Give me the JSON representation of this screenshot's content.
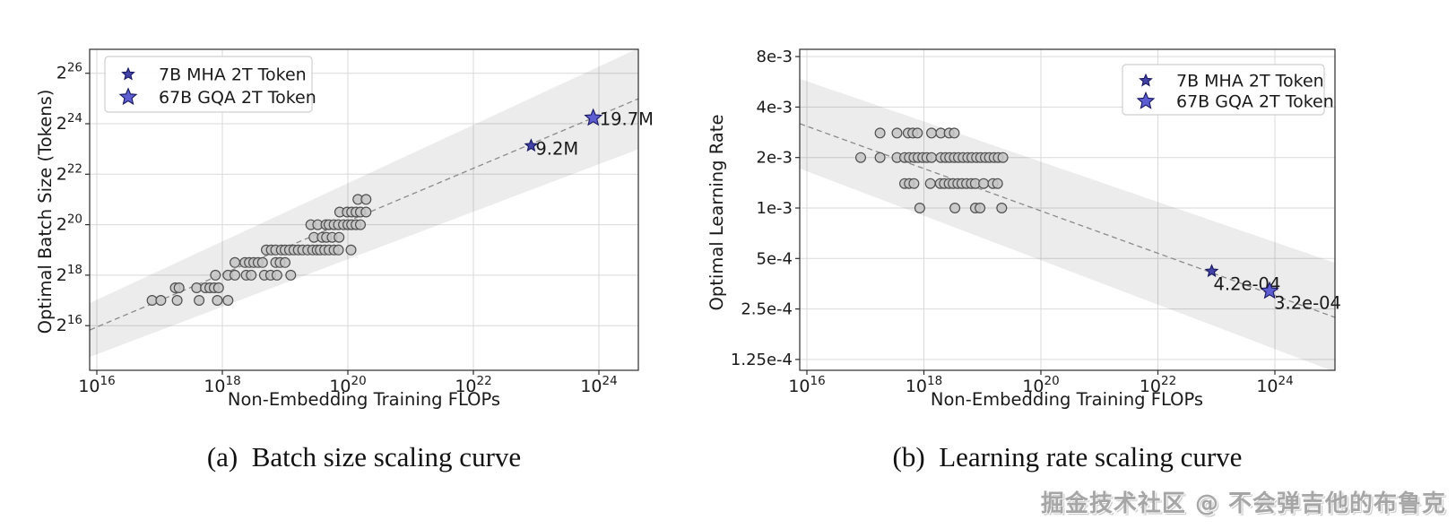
{
  "figure": {
    "caption_a": "(a)  Batch size scaling curve",
    "caption_b": "(b)  Learning rate scaling curve",
    "watermark": "掘金技术社区 @ 不会弹吉他的布鲁克"
  },
  "colors": {
    "dot_fill": "#c6c6c6",
    "dot_edge": "#4f4f4f",
    "star_small_fill": "#4343a7",
    "star_large_fill": "#5e5ed3",
    "star_edge": "#181860",
    "fit_line": "#8a8a8a",
    "band_fill": "rgba(0,0,0,0.075)",
    "grid": "#d9d9d9",
    "spine": "#2b2b2b",
    "text": "#1a1a1a",
    "legend_border": "#cfcfcf"
  },
  "chart_data": [
    {
      "id": "a",
      "type": "scatter",
      "title": "(a) Batch size scaling curve",
      "xlabel": "Non-Embedding Training FLOPs",
      "ylabel": "Optimal Batch Size (Tokens)",
      "x_scale": "log10",
      "y_scale": "log2",
      "x_ticks": [
        16,
        18,
        20,
        22,
        24
      ],
      "x_tick_base": "10",
      "y_ticks": [
        {
          "base": "2",
          "exp": "26",
          "log2": 26
        },
        {
          "base": "2",
          "exp": "24",
          "log2": 24
        },
        {
          "base": "2",
          "exp": "22",
          "log2": 22
        },
        {
          "base": "2",
          "exp": "20",
          "log2": 20
        },
        {
          "base": "2",
          "exp": "18",
          "log2": 18
        },
        {
          "base": "2",
          "exp": "16",
          "log2": 16
        }
      ],
      "x_range": [
        15.89,
        24.63
      ],
      "y_range_log2": [
        14.23,
        26.95
      ],
      "grid": true,
      "fit_line": {
        "x": [
          15.89,
          24.63
        ],
        "y": [
          15.83,
          24.99
        ],
        "band_halfwidth": [
          1.07,
          2.0
        ]
      },
      "point_rows": [
        {
          "y_log2": 21,
          "x": [
            20.16,
            20.29
          ]
        },
        {
          "y_log2": 20.5,
          "x": [
            19.87,
            19.99,
            20.06,
            20.13,
            20.2,
            20.29
          ]
        },
        {
          "y_log2": 20,
          "x": [
            19.41,
            19.52,
            19.65,
            19.7,
            19.78,
            19.85,
            19.93,
            20.0,
            20.06,
            20.13,
            20.2
          ]
        },
        {
          "y_log2": 19.5,
          "x": [
            19.46,
            19.59,
            19.66,
            19.75,
            19.86
          ]
        },
        {
          "y_log2": 19,
          "x": [
            18.7,
            18.78,
            18.85,
            18.94,
            19.0,
            19.07,
            19.14,
            19.21,
            19.28,
            19.36,
            19.44,
            19.51,
            19.56,
            19.63,
            19.7,
            19.78,
            19.85,
            20.05
          ]
        },
        {
          "y_log2": 18.5,
          "x": [
            18.2,
            18.36,
            18.43,
            18.5,
            18.57,
            18.64,
            18.85,
            18.92,
            19.0
          ]
        },
        {
          "y_log2": 18,
          "x": [
            17.89,
            18.09,
            18.2,
            18.38,
            18.46,
            18.67,
            18.77,
            18.87,
            19.09
          ]
        },
        {
          "y_log2": 17.5,
          "x": [
            17.25,
            17.31,
            17.59,
            17.73,
            17.8,
            17.87,
            17.94
          ]
        },
        {
          "y_log2": 17,
          "x": [
            16.88,
            17.02,
            17.28,
            17.63,
            17.92,
            18.09
          ]
        }
      ],
      "stars": [
        {
          "label": "9.2M",
          "x": 22.92,
          "y_log2": 23.13,
          "size": "small",
          "label_offset": [
            5,
            10
          ]
        },
        {
          "label": "19.7M",
          "x": 23.91,
          "y_log2": 24.23,
          "size": "large",
          "label_offset": [
            7,
            8
          ]
        }
      ],
      "legend": {
        "position": "upper-left",
        "entries": [
          {
            "label": "7B MHA 2T Token",
            "marker": "star-small"
          },
          {
            "label": "67B GQA 2T Token",
            "marker": "star-large"
          }
        ]
      }
    },
    {
      "id": "b",
      "type": "scatter",
      "title": "(b) Learning rate scaling curve",
      "xlabel": "Non-Embedding Training FLOPs",
      "ylabel": "Optimal Learning Rate",
      "x_scale": "log10",
      "y_scale": "log2",
      "x_ticks": [
        16,
        18,
        20,
        22,
        24
      ],
      "x_tick_base": "10",
      "y_ticks": [
        {
          "label": "8e-3",
          "log2": 3
        },
        {
          "label": "4e-3",
          "log2": 2
        },
        {
          "label": "2e-3",
          "log2": 1
        },
        {
          "label": "1e-3",
          "log2": 0
        },
        {
          "label": "5e-4",
          "log2": -1
        },
        {
          "label": "2.5e-4",
          "log2": -2
        },
        {
          "label": "1.25e-4",
          "log2": -3
        }
      ],
      "x_range": [
        15.88,
        25.03
      ],
      "y_range_log2": [
        -3.215,
        3.144
      ],
      "y_unit_note": "log2 of learning-rate x 1000",
      "grid": true,
      "fit_line": {
        "x": [
          15.88,
          25.03
        ],
        "y": [
          1.67,
          -2.167
        ],
        "band_halfwidth": [
          0.89,
          1.08
        ]
      },
      "point_rows": [
        {
          "lr": "2.8e-3",
          "y_log2": 1.485,
          "x": [
            17.25,
            17.54,
            17.73,
            17.81,
            17.89,
            18.13,
            18.29,
            18.43,
            18.52
          ]
        },
        {
          "lr": "2e-3",
          "y_log2": 1.0,
          "x": [
            16.92,
            17.25,
            17.54,
            17.67,
            17.75,
            17.83,
            17.9,
            17.98,
            18.05,
            18.13,
            18.29,
            18.37,
            18.44,
            18.52,
            18.59,
            18.67,
            18.75,
            18.82,
            18.9,
            18.97,
            19.05,
            19.12,
            19.2,
            19.27,
            19.35
          ]
        },
        {
          "lr": "1.4e-3",
          "y_log2": 0.485,
          "x": [
            17.67,
            17.75,
            17.83,
            18.11,
            18.28,
            18.35,
            18.43,
            18.5,
            18.58,
            18.65,
            18.73,
            18.81,
            18.88,
            19.02,
            19.18,
            19.26
          ]
        },
        {
          "lr": "1e-3",
          "y_log2": 0,
          "x": [
            17.93,
            18.53,
            18.88,
            18.96,
            19.33
          ]
        }
      ],
      "stars": [
        {
          "label": "4.2e-04",
          "x": 22.92,
          "y_log2": -1.252,
          "size": "small",
          "label_offset": [
            2,
            21
          ]
        },
        {
          "label": "3.2e-04",
          "x": 23.91,
          "y_log2": -1.644,
          "size": "large",
          "label_offset": [
            5,
            20
          ]
        }
      ],
      "legend": {
        "position": "upper-right",
        "entries": [
          {
            "label": "7B MHA 2T Token",
            "marker": "star-small"
          },
          {
            "label": "67B GQA 2T Token",
            "marker": "star-large"
          }
        ]
      }
    }
  ]
}
